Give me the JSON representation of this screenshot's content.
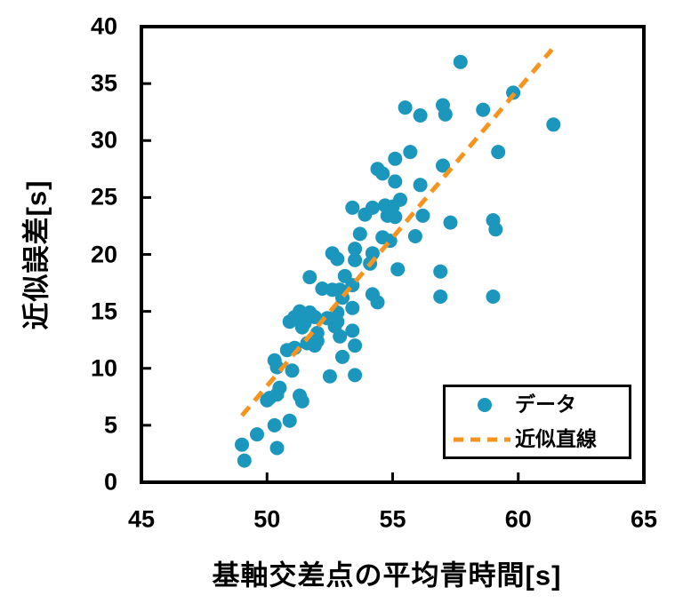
{
  "chart_data": {
    "type": "scatter",
    "title": "",
    "xlabel": "基軸交差点の平均青時間[s]",
    "ylabel": "近似誤差[s]",
    "xlim": [
      45,
      65
    ],
    "ylim": [
      0,
      40
    ],
    "x_ticks": [
      45,
      50,
      55,
      60,
      65
    ],
    "y_ticks": [
      0,
      5,
      10,
      15,
      20,
      25,
      30,
      35,
      40
    ],
    "grid": false,
    "legend_position": "inside-lower-right",
    "colors": {
      "marker": "#1B96BC",
      "trendline": "#F79420",
      "axis": "#000000",
      "background": "#FFFFFF"
    },
    "series": [
      {
        "name": "データ",
        "kind": "scatter",
        "color": "#1B96BC",
        "points": [
          [
            49.0,
            3.3
          ],
          [
            49.1,
            1.9
          ],
          [
            49.6,
            4.2
          ],
          [
            50.3,
            5.0
          ],
          [
            50.4,
            3.0
          ],
          [
            50.9,
            5.4
          ],
          [
            50.0,
            7.2
          ],
          [
            50.1,
            7.4
          ],
          [
            50.4,
            7.7
          ],
          [
            50.5,
            8.3
          ],
          [
            51.3,
            7.6
          ],
          [
            51.4,
            7.1
          ],
          [
            50.3,
            10.7
          ],
          [
            50.4,
            10.1
          ],
          [
            51.0,
            9.8
          ],
          [
            50.8,
            11.6
          ],
          [
            51.1,
            11.8
          ],
          [
            51.6,
            12.2
          ],
          [
            51.9,
            12.0
          ],
          [
            52.0,
            12.4
          ],
          [
            52.5,
            9.3
          ],
          [
            53.0,
            11.0
          ],
          [
            53.5,
            9.4
          ],
          [
            53.5,
            12.0
          ],
          [
            50.9,
            14.1
          ],
          [
            51.1,
            14.5
          ],
          [
            51.5,
            14.0
          ],
          [
            51.4,
            13.6
          ],
          [
            51.3,
            15.0
          ],
          [
            51.7,
            14.9
          ],
          [
            51.9,
            14.5
          ],
          [
            52.4,
            14.4
          ],
          [
            52.7,
            13.7
          ],
          [
            52.8,
            14.9
          ],
          [
            52.8,
            14.1
          ],
          [
            52.9,
            12.8
          ],
          [
            52.0,
            13.1
          ],
          [
            53.4,
            13.3
          ],
          [
            53.4,
            15.3
          ],
          [
            51.7,
            18.0
          ],
          [
            52.2,
            17.0
          ],
          [
            52.6,
            16.9
          ],
          [
            52.9,
            16.9
          ],
          [
            53.0,
            16.2
          ],
          [
            53.1,
            18.1
          ],
          [
            53.4,
            17.3
          ],
          [
            52.6,
            20.1
          ],
          [
            52.8,
            19.6
          ],
          [
            53.5,
            20.5
          ],
          [
            53.5,
            19.5
          ],
          [
            54.1,
            19.2
          ],
          [
            54.2,
            20.1
          ],
          [
            54.2,
            16.5
          ],
          [
            54.4,
            15.8
          ],
          [
            53.7,
            21.8
          ],
          [
            54.6,
            21.5
          ],
          [
            54.9,
            21.2
          ],
          [
            55.9,
            21.6
          ],
          [
            55.2,
            18.7
          ],
          [
            56.9,
            18.5
          ],
          [
            56.9,
            16.3
          ],
          [
            59.0,
            16.3
          ],
          [
            53.4,
            24.1
          ],
          [
            54.2,
            24.1
          ],
          [
            53.9,
            23.5
          ],
          [
            54.7,
            24.3
          ],
          [
            55.0,
            24.2
          ],
          [
            54.8,
            23.4
          ],
          [
            55.1,
            23.3
          ],
          [
            55.3,
            24.8
          ],
          [
            56.2,
            23.4
          ],
          [
            57.3,
            22.8
          ],
          [
            59.0,
            23.0
          ],
          [
            59.1,
            22.2
          ],
          [
            54.4,
            27.5
          ],
          [
            54.6,
            27.1
          ],
          [
            55.1,
            28.4
          ],
          [
            55.7,
            29.0
          ],
          [
            55.1,
            26.4
          ],
          [
            56.1,
            26.1
          ],
          [
            57.0,
            27.8
          ],
          [
            59.2,
            29.0
          ],
          [
            55.5,
            32.9
          ],
          [
            56.1,
            32.2
          ],
          [
            57.0,
            33.1
          ],
          [
            57.1,
            32.3
          ],
          [
            58.6,
            32.7
          ],
          [
            59.8,
            34.2
          ],
          [
            61.4,
            31.4
          ],
          [
            57.7,
            36.9
          ]
        ]
      },
      {
        "name": "近似直線",
        "kind": "dashed-line",
        "color": "#F79420",
        "from": [
          49.0,
          5.85
        ],
        "to": [
          61.34,
          38.0
        ]
      }
    ]
  }
}
